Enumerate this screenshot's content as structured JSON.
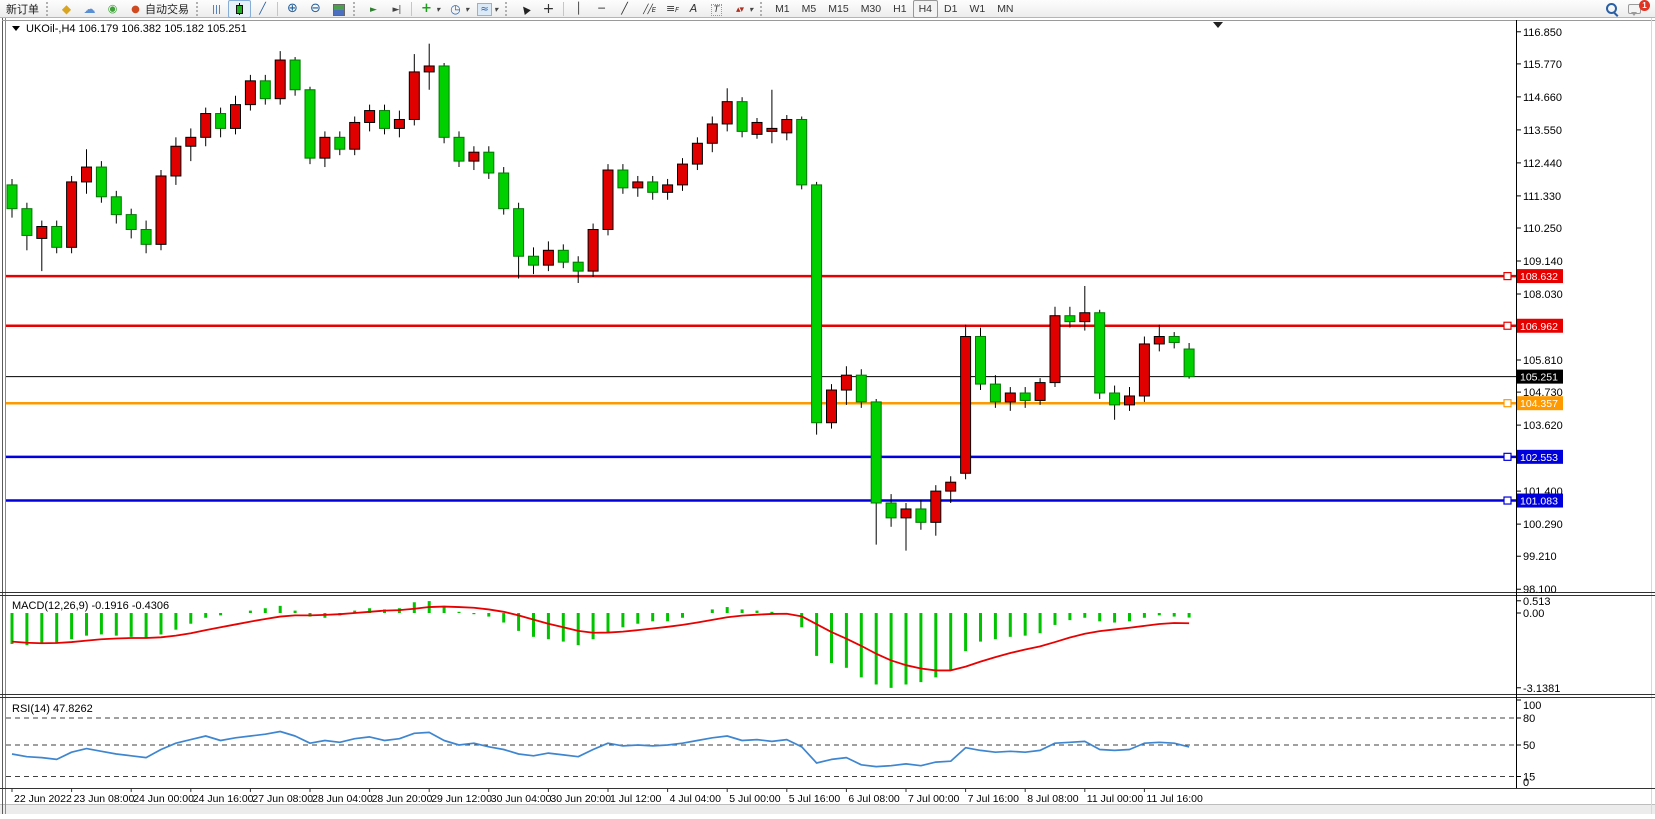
{
  "colors": {
    "bull": "#e00000",
    "bear": "#00cf00",
    "bull_stroke": "#000000",
    "bear_stroke": "#007700",
    "wick": "#000000",
    "macd_hist": "#00c400",
    "macd_signal": "#e80000",
    "rsi_line": "#3e86d0",
    "line_red": "#e60000",
    "line_orange": "#ff9900",
    "line_blue": "#0000dd",
    "bid_black": "#000000"
  },
  "toolbar": {
    "new_order_label": "新订单",
    "autotrade_label": "自动交易",
    "timeframes": [
      "M1",
      "M5",
      "M15",
      "M30",
      "H1",
      "H4",
      "D1",
      "W1",
      "MN"
    ],
    "active_timeframe": "H4",
    "chat_badge": "1"
  },
  "chart_data": {
    "type": "candlestick",
    "symbol_title": "UKOil-,H4",
    "ohlc_title": "106.179 106.382 105.182 105.251",
    "last": {
      "open": 106.179,
      "high": 106.382,
      "low": 105.182,
      "close": 105.251
    },
    "price_axis_ticks": [
      "116.850",
      "115.770",
      "114.660",
      "113.550",
      "112.440",
      "111.330",
      "110.250",
      "109.140",
      "108.030",
      "105.810",
      "104.730",
      "103.620",
      "101.400",
      "100.290",
      "99.210",
      "98.100"
    ],
    "price_lines": [
      {
        "value": 108.632,
        "label": "108.632",
        "color": "#e60000",
        "width": 2.5,
        "marker": true
      },
      {
        "value": 106.962,
        "label": "106.962",
        "color": "#e60000",
        "width": 2.5,
        "marker": true
      },
      {
        "value": 105.251,
        "label": "105.251",
        "color": "#000000",
        "width": 1,
        "marker": false
      },
      {
        "value": 104.357,
        "label": "104.357",
        "color": "#ff9900",
        "width": 2.5,
        "marker": true
      },
      {
        "value": 102.553,
        "label": "102.553",
        "color": "#0000dd",
        "width": 2.5,
        "marker": true
      },
      {
        "value": 101.083,
        "label": "101.083",
        "color": "#0000dd",
        "width": 2.5,
        "marker": true
      }
    ],
    "x_labels": [
      "22 Jun 2022",
      "23 Jun 08:00",
      "24 Jun 00:00",
      "24 Jun 16:00",
      "27 Jun 08:00",
      "28 Jun 04:00",
      "28 Jun 20:00",
      "29 Jun 12:00",
      "30 Jun 04:00",
      "30 Jun 20:00",
      "1 Jul 12:00",
      "4 Jul 04:00",
      "5 Jul 00:00",
      "5 Jul 16:00",
      "6 Jul 08:00",
      "7 Jul 00:00",
      "7 Jul 16:00",
      "8 Jul 08:00",
      "11 Jul 00:00",
      "11 Jul 16:00"
    ],
    "candles": [
      [
        111.7,
        111.9,
        110.6,
        110.9
      ],
      [
        110.9,
        111.1,
        109.5,
        110.0
      ],
      [
        109.9,
        110.5,
        108.8,
        110.3
      ],
      [
        110.3,
        110.5,
        109.4,
        109.6
      ],
      [
        109.6,
        112.0,
        109.4,
        111.8
      ],
      [
        111.8,
        112.9,
        111.4,
        112.3
      ],
      [
        112.3,
        112.5,
        111.1,
        111.3
      ],
      [
        111.3,
        111.5,
        110.4,
        110.7
      ],
      [
        110.7,
        110.9,
        109.9,
        110.2
      ],
      [
        110.2,
        110.5,
        109.4,
        109.7
      ],
      [
        109.7,
        112.2,
        109.5,
        112.0
      ],
      [
        112.0,
        113.3,
        111.7,
        113.0
      ],
      [
        113.0,
        113.6,
        112.5,
        113.3
      ],
      [
        113.3,
        114.3,
        113.0,
        114.1
      ],
      [
        114.1,
        114.3,
        113.3,
        113.6
      ],
      [
        113.6,
        114.7,
        113.4,
        114.4
      ],
      [
        114.4,
        115.4,
        114.2,
        115.2
      ],
      [
        115.2,
        115.4,
        114.4,
        114.6
      ],
      [
        114.6,
        116.2,
        114.4,
        115.9
      ],
      [
        115.9,
        116.0,
        114.7,
        114.9
      ],
      [
        114.9,
        115.0,
        112.4,
        112.6
      ],
      [
        112.6,
        113.5,
        112.3,
        113.3
      ],
      [
        113.3,
        113.5,
        112.7,
        112.9
      ],
      [
        112.9,
        114.0,
        112.7,
        113.8
      ],
      [
        113.8,
        114.4,
        113.5,
        114.2
      ],
      [
        114.2,
        114.4,
        113.4,
        113.6
      ],
      [
        113.6,
        114.2,
        113.3,
        113.9
      ],
      [
        113.9,
        116.1,
        113.7,
        115.5
      ],
      [
        115.5,
        116.45,
        114.9,
        115.7
      ],
      [
        115.7,
        115.8,
        113.1,
        113.3
      ],
      [
        113.3,
        113.5,
        112.3,
        112.5
      ],
      [
        112.5,
        113.0,
        112.2,
        112.8
      ],
      [
        112.8,
        113.0,
        111.9,
        112.1
      ],
      [
        112.1,
        112.3,
        110.7,
        110.9
      ],
      [
        110.9,
        111.1,
        108.55,
        109.3
      ],
      [
        109.3,
        109.6,
        108.7,
        109.0
      ],
      [
        109.0,
        109.8,
        108.8,
        109.5
      ],
      [
        109.5,
        109.7,
        108.9,
        109.1
      ],
      [
        109.1,
        109.3,
        108.4,
        108.8
      ],
      [
        108.8,
        110.4,
        108.6,
        110.2
      ],
      [
        110.2,
        112.4,
        110.0,
        112.2
      ],
      [
        112.2,
        112.4,
        111.4,
        111.6
      ],
      [
        111.6,
        112.0,
        111.3,
        111.8
      ],
      [
        111.8,
        112.0,
        111.2,
        111.45
      ],
      [
        111.45,
        111.9,
        111.2,
        111.7
      ],
      [
        111.7,
        112.6,
        111.5,
        112.4
      ],
      [
        112.4,
        113.3,
        112.2,
        113.1
      ],
      [
        113.1,
        114.0,
        112.8,
        113.75
      ],
      [
        113.75,
        114.95,
        113.5,
        114.5
      ],
      [
        114.5,
        114.65,
        113.3,
        113.5
      ],
      [
        113.4,
        113.95,
        113.25,
        113.8
      ],
      [
        113.5,
        114.9,
        113.1,
        113.6
      ],
      [
        113.45,
        114.05,
        113.2,
        113.9
      ],
      [
        113.9,
        114.0,
        111.55,
        111.7
      ],
      [
        111.7,
        111.8,
        103.3,
        103.7
      ],
      [
        103.7,
        105.0,
        103.5,
        104.8
      ],
      [
        104.8,
        105.6,
        104.3,
        105.3
      ],
      [
        105.3,
        105.5,
        104.2,
        104.4
      ],
      [
        104.4,
        104.5,
        99.6,
        101.0
      ],
      [
        101.0,
        101.3,
        100.2,
        100.5
      ],
      [
        100.5,
        101.0,
        99.4,
        100.8
      ],
      [
        100.8,
        101.1,
        100.1,
        100.35
      ],
      [
        100.35,
        101.6,
        99.9,
        101.4
      ],
      [
        101.4,
        101.9,
        101.0,
        101.7
      ],
      [
        102.0,
        107.0,
        101.8,
        106.6
      ],
      [
        106.6,
        106.9,
        104.8,
        105.0
      ],
      [
        105.0,
        105.3,
        104.2,
        104.4
      ],
      [
        104.4,
        104.9,
        104.1,
        104.7
      ],
      [
        104.7,
        104.9,
        104.2,
        104.45
      ],
      [
        104.45,
        105.2,
        104.3,
        105.05
      ],
      [
        105.05,
        107.6,
        104.9,
        107.3
      ],
      [
        107.3,
        107.6,
        106.9,
        107.1
      ],
      [
        107.1,
        108.3,
        106.8,
        107.4
      ],
      [
        107.4,
        107.5,
        104.5,
        104.7
      ],
      [
        104.7,
        104.95,
        103.8,
        104.3
      ],
      [
        104.3,
        104.9,
        104.1,
        104.6
      ],
      [
        104.6,
        106.6,
        104.4,
        106.35
      ],
      [
        106.35,
        107.0,
        106.1,
        106.6
      ],
      [
        106.6,
        106.75,
        106.2,
        106.4
      ],
      [
        106.179,
        106.382,
        105.182,
        105.251
      ]
    ],
    "macd": {
      "label": "MACD(12,26,9)",
      "value": "-0.1916",
      "signal_value": "-0.4306",
      "axis_labels": [
        "0.513",
        "0.00",
        "-3.1381"
      ],
      "values": [
        -1.3,
        -1.35,
        -1.3,
        -1.25,
        -1.1,
        -0.95,
        -0.9,
        -0.95,
        -1.0,
        -1.05,
        -0.9,
        -0.7,
        -0.45,
        -0.2,
        -0.1,
        0.0,
        0.1,
        0.2,
        0.3,
        0.1,
        -0.15,
        -0.2,
        -0.1,
        0.1,
        0.2,
        0.15,
        0.2,
        0.45,
        0.5,
        0.3,
        0.05,
        -0.05,
        -0.15,
        -0.4,
        -0.75,
        -1.0,
        -1.1,
        -1.2,
        -1.35,
        -1.1,
        -0.8,
        -0.6,
        -0.45,
        -0.35,
        -0.35,
        -0.2,
        0.0,
        0.15,
        0.25,
        0.15,
        0.1,
        0.05,
        0.0,
        -0.6,
        -1.8,
        -2.1,
        -2.3,
        -2.7,
        -3.0,
        -3.14,
        -3.0,
        -2.9,
        -2.7,
        -2.4,
        -1.6,
        -1.2,
        -1.1,
        -1.0,
        -0.95,
        -0.85,
        -0.5,
        -0.3,
        -0.2,
        -0.35,
        -0.4,
        -0.35,
        -0.2,
        -0.1,
        -0.15,
        -0.1916
      ],
      "signal": [
        -1.2,
        -1.25,
        -1.27,
        -1.26,
        -1.22,
        -1.16,
        -1.1,
        -1.07,
        -1.05,
        -1.05,
        -1.02,
        -0.95,
        -0.85,
        -0.72,
        -0.6,
        -0.48,
        -0.36,
        -0.25,
        -0.15,
        -0.1,
        -0.1,
        -0.08,
        -0.05,
        0.0,
        0.05,
        0.1,
        0.12,
        0.18,
        0.25,
        0.27,
        0.25,
        0.22,
        0.15,
        0.05,
        -0.1,
        -0.28,
        -0.45,
        -0.6,
        -0.75,
        -0.83,
        -0.82,
        -0.78,
        -0.72,
        -0.65,
        -0.58,
        -0.5,
        -0.4,
        -0.29,
        -0.18,
        -0.11,
        -0.07,
        -0.04,
        -0.03,
        -0.14,
        -0.47,
        -0.8,
        -1.08,
        -1.38,
        -1.71,
        -1.99,
        -2.19,
        -2.33,
        -2.41,
        -2.41,
        -2.25,
        -2.04,
        -1.85,
        -1.68,
        -1.53,
        -1.4,
        -1.22,
        -1.03,
        -0.87,
        -0.76,
        -0.69,
        -0.62,
        -0.54,
        -0.46,
        -0.42,
        -0.4306
      ]
    },
    "rsi": {
      "label": "RSI(14)",
      "value": "47.8262",
      "levels": [
        100,
        80,
        50,
        15,
        0
      ],
      "values": [
        40,
        37,
        36,
        34,
        42,
        46,
        43,
        40,
        38,
        36,
        45,
        52,
        56,
        60,
        55,
        58,
        60,
        62,
        65,
        60,
        52,
        55,
        53,
        57,
        59,
        55,
        57,
        63,
        64,
        55,
        50,
        52,
        48,
        45,
        40,
        38,
        41,
        39,
        37,
        45,
        52,
        49,
        50,
        49,
        50,
        52,
        55,
        58,
        60,
        55,
        56,
        54,
        56,
        48,
        30,
        34,
        36,
        28,
        26,
        27,
        29,
        27,
        31,
        32,
        47,
        44,
        42,
        43,
        42,
        44,
        52,
        53,
        54,
        45,
        44,
        45,
        52,
        53,
        52,
        47.8262
      ]
    }
  }
}
